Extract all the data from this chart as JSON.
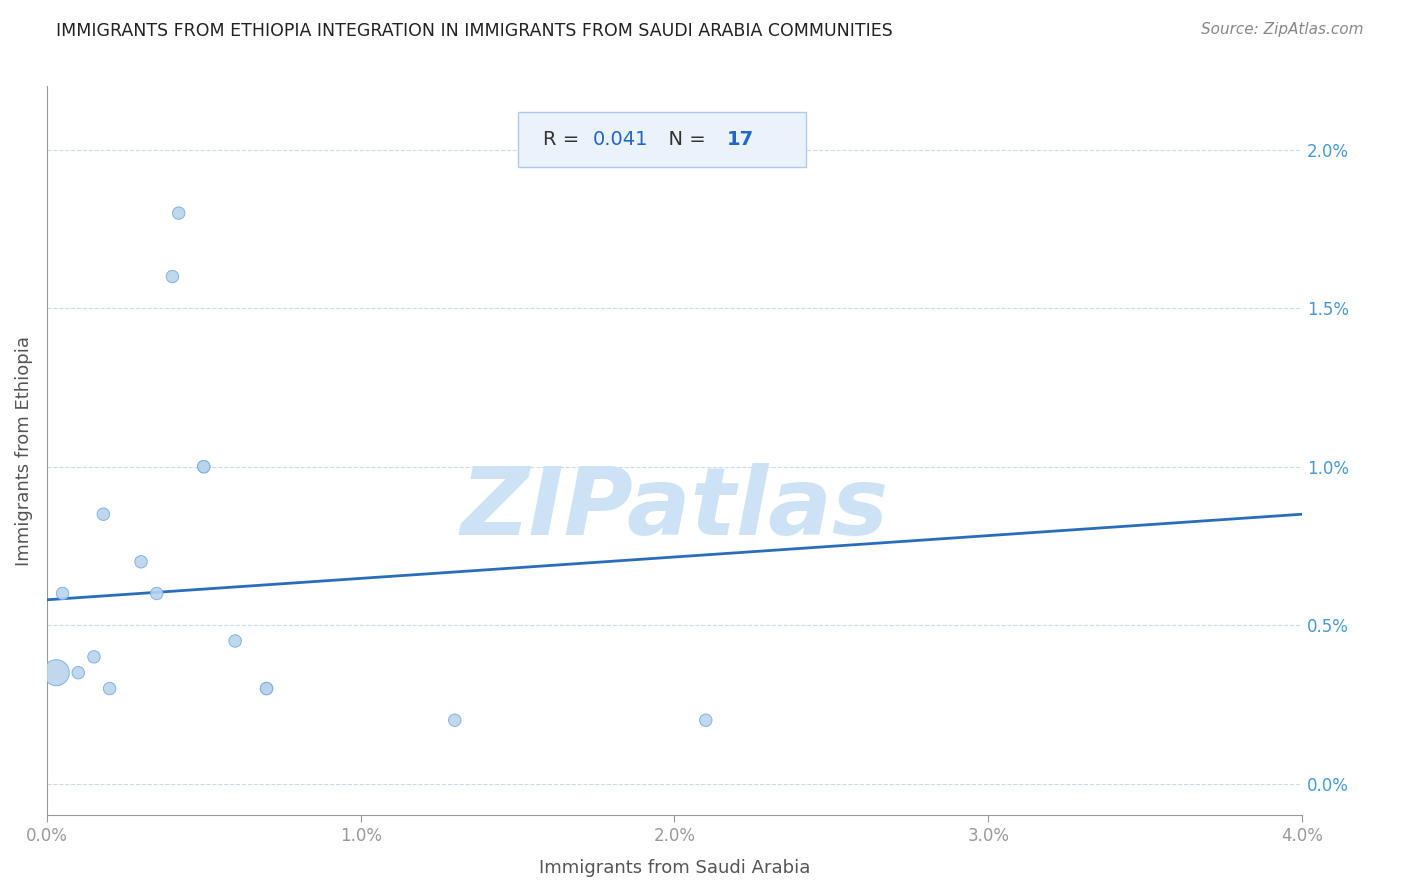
{
  "title": "IMMIGRANTS FROM ETHIOPIA INTEGRATION IN IMMIGRANTS FROM SAUDI ARABIA COMMUNITIES",
  "source": "Source: ZipAtlas.com",
  "xlabel": "Immigrants from Saudi Arabia",
  "ylabel": "Immigrants from Ethiopia",
  "R": 0.041,
  "N": 17,
  "scatter_x": [
    0.0003,
    0.0005,
    0.001,
    0.0015,
    0.0018,
    0.002,
    0.003,
    0.0035,
    0.004,
    0.0042,
    0.005,
    0.005,
    0.006,
    0.007,
    0.007,
    0.013,
    0.021
  ],
  "scatter_y": [
    0.0035,
    0.006,
    0.0035,
    0.004,
    0.0085,
    0.003,
    0.007,
    0.006,
    0.016,
    0.018,
    0.01,
    0.01,
    0.0045,
    0.003,
    0.003,
    0.002,
    0.002
  ],
  "scatter_sizes": [
    350,
    80,
    80,
    80,
    80,
    80,
    80,
    80,
    80,
    80,
    80,
    80,
    80,
    80,
    80,
    80,
    80
  ],
  "trendline_x": [
    0.0,
    0.04
  ],
  "trendline_y": [
    0.0058,
    0.0085
  ],
  "dot_color": "#b8d4ed",
  "dot_edge_color": "#7aabe0",
  "line_color": "#2a6ebb",
  "background_color": "#ffffff",
  "grid_color": "#c8dcee",
  "title_color": "#222222",
  "axis_label_color": "#555555",
  "tick_color": "#999999",
  "right_tick_color": "#4499dd",
  "annotation_r_color": "#333333",
  "annotation_n_color": "#2266cc",
  "xlim": [
    0.0,
    0.04
  ],
  "ylim": [
    -0.001,
    0.022
  ],
  "xticks": [
    0.0,
    0.01,
    0.02,
    0.03,
    0.04
  ],
  "yticks_right": [
    0.0,
    0.005,
    0.01,
    0.015,
    0.02
  ],
  "watermark": "ZIPatlas",
  "watermark_color": "#cde3f5",
  "box_facecolor": "#eaf2fb",
  "box_edgecolor": "#aaccee"
}
